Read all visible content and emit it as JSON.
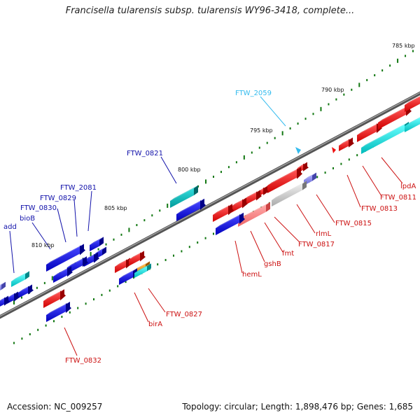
{
  "title": "Francisella tularensis subsp. tularensis WY96-3418, complete...",
  "footer": {
    "accession": "Accession: NC_009257",
    "summary": "Topology: circular; Length: 1,898,476 bp; Genes: 1,685"
  },
  "colors": {
    "forward": "#ee1111",
    "reverse": "#1111dd",
    "cyan": "#11cccc",
    "backbone": "#777777",
    "tick": "#117711"
  },
  "scale_labels": [
    "785 kbp",
    "790 kbp",
    "795 kbp",
    "800 kbp",
    "805 kbp",
    "810 kbp"
  ],
  "gene_labels": [
    {
      "text": "FTW_2059",
      "color": "#33bbee"
    },
    {
      "text": "FTW_0821",
      "color": "#1111aa"
    },
    {
      "text": "FTW_2081",
      "color": "#1111aa"
    },
    {
      "text": "FTW_0829",
      "color": "#1111aa"
    },
    {
      "text": "FTW_0830",
      "color": "#1111aa"
    },
    {
      "text": "bioB",
      "color": "#1111aa"
    },
    {
      "text": "add",
      "color": "#1111aa"
    },
    {
      "text": "lpdA",
      "color": "#cc1111"
    },
    {
      "text": "FTW_0811",
      "color": "#cc1111"
    },
    {
      "text": "FTW_0813",
      "color": "#cc1111"
    },
    {
      "text": "FTW_0815",
      "color": "#cc1111"
    },
    {
      "text": "rlmL",
      "color": "#cc1111"
    },
    {
      "text": "FTW_0817",
      "color": "#cc1111"
    },
    {
      "text": "fmt",
      "color": "#cc1111"
    },
    {
      "text": "gshB",
      "color": "#cc1111"
    },
    {
      "text": "hemL",
      "color": "#cc1111"
    },
    {
      "text": "FTW_0827",
      "color": "#cc1111"
    },
    {
      "text": "birA",
      "color": "#cc1111"
    },
    {
      "text": "FTW_0832",
      "color": "#cc1111"
    }
  ]
}
